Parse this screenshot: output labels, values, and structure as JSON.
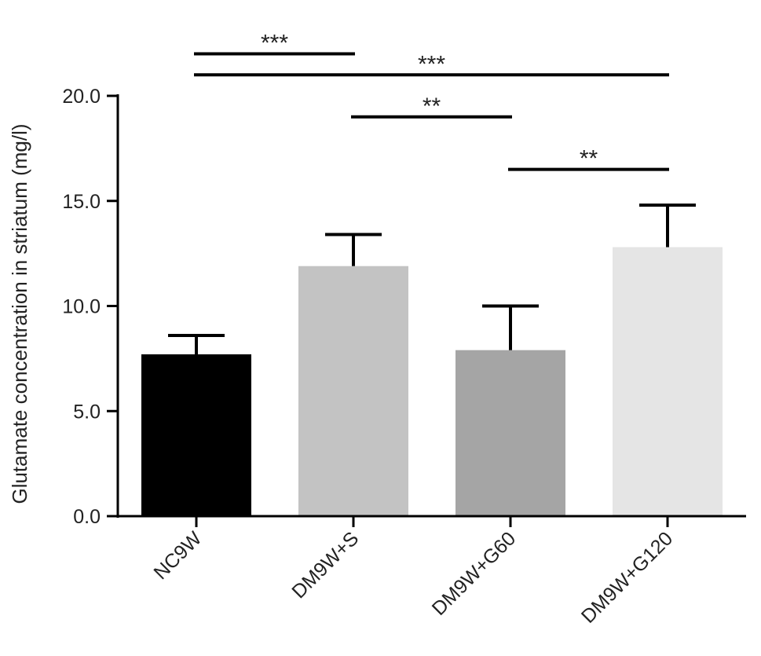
{
  "chart_data": {
    "type": "bar",
    "title": "",
    "xlabel": "",
    "ylabel": "Glutamate concentration in striatum (mg/l)",
    "ylim": [
      0,
      20
    ],
    "yticks": [
      0,
      5,
      10,
      15,
      20
    ],
    "ytick_labels": [
      "0.0",
      "5.0",
      "10.0",
      "15.0",
      "20.0"
    ],
    "grid": false,
    "categories": [
      "NC9W",
      "DM9W+S",
      "DM9W+G60",
      "DM9W+G120"
    ],
    "values": [
      7.7,
      11.9,
      7.9,
      12.8
    ],
    "errors": [
      0.9,
      1.5,
      2.1,
      2.0
    ],
    "colors": [
      "#000000",
      "#c3c3c3",
      "#a5a5a5",
      "#e5e5e5"
    ],
    "significance": [
      {
        "from": 0,
        "to": 1,
        "label": "***",
        "y": 22.0
      },
      {
        "from": 0,
        "to": 3,
        "label": "***",
        "y": 21.0
      },
      {
        "from": 1,
        "to": 2,
        "label": "**",
        "y": 19.0
      },
      {
        "from": 2,
        "to": 3,
        "label": "**",
        "y": 16.5
      }
    ]
  }
}
